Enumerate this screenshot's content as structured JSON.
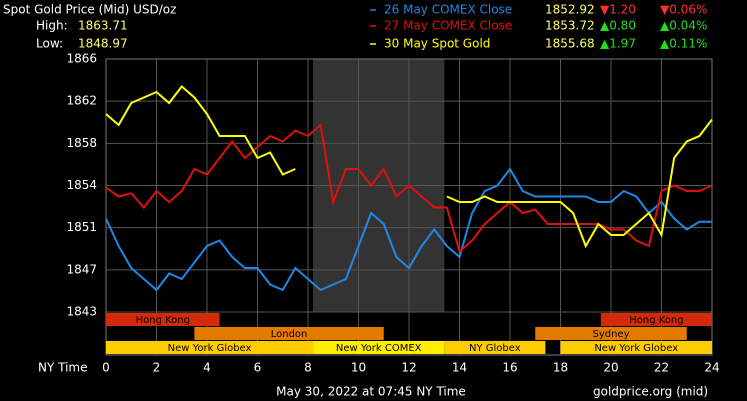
{
  "chart_data": {
    "type": "line",
    "title": "Spot Gold Price (Mid) USD/oz",
    "high_label": "High:",
    "high": 1863.71,
    "low_label": "Low:",
    "low": 1848.97,
    "x_label": "NY Time",
    "footer": "May 30, 2022 at 07:45 NY Time",
    "source": "goldprice.org (mid)",
    "x": [
      0,
      0.5,
      1,
      1.5,
      2,
      2.5,
      3,
      3.5,
      4,
      4.5,
      5,
      5.5,
      6,
      6.5,
      7,
      7.5,
      8,
      8.5,
      9,
      9.5,
      10,
      10.5,
      11,
      11.5,
      12,
      12.5,
      13,
      13.5,
      14,
      14.5,
      15,
      15.5,
      16,
      16.5,
      17,
      17.5,
      18,
      18.5,
      19,
      19.5,
      20,
      20.5,
      21,
      21.5,
      22,
      22.5,
      23,
      23.5,
      24
    ],
    "xlim": [
      0,
      24
    ],
    "xticks": [
      0,
      2,
      4,
      6,
      8,
      10,
      12,
      14,
      16,
      18,
      20,
      22,
      24
    ],
    "ylim": [
      1843,
      1866
    ],
    "yticks": [
      1843,
      {
        "value": 1846.83,
        "label": "1847"
      },
      {
        "value": 1850.67,
        "label": "1851"
      },
      {
        "value": 1854.5,
        "label": "1854"
      },
      {
        "value": 1858.33,
        "label": "1858"
      },
      {
        "value": 1862.17,
        "label": "1862"
      },
      1866
    ],
    "grid": true,
    "shaded": [
      8.2,
      13.4
    ],
    "series": [
      {
        "name": "26 May COMEX Close",
        "color": "#1e88e5",
        "close": 1852.92,
        "change": {
          "value": -1.2,
          "label": "▼1.20"
        },
        "change_pct": {
          "value": -0.06,
          "label": "▼0.06%"
        },
        "values": [
          1851.5,
          1849,
          1847,
          1846,
          1845,
          1846.5,
          1846,
          1847.5,
          1849,
          1849.5,
          1848,
          1847,
          1847,
          1845.5,
          1845,
          1847,
          1846,
          1845,
          1845.5,
          1846,
          1849,
          1852,
          1851,
          1848,
          1847,
          1849,
          1850.5,
          1849,
          1848,
          1852,
          1854,
          1854.5,
          1856,
          1854,
          1853.5,
          1853.5,
          1853.5,
          1853.5,
          1853.5,
          1853,
          1853,
          1854,
          1853.5,
          1852,
          1853,
          1851.5,
          1850.5,
          1851.2,
          1851.2
        ]
      },
      {
        "name": "27 May COMEX Close",
        "color": "#e01010",
        "close": 1853.72,
        "change": {
          "value": 0.8,
          "label": "▲0.80"
        },
        "change_pct": {
          "value": 0.04,
          "label": "▲0.04%"
        },
        "values": [
          1854.3,
          1853.5,
          1853.8,
          1852.5,
          1854,
          1853,
          1854,
          1856,
          1855.5,
          1857,
          1858.5,
          1857,
          1858,
          1859,
          1858.5,
          1859.5,
          1859,
          1860,
          1853,
          1856,
          1856,
          1854.5,
          1856,
          1853.5,
          1854.5,
          1853.5,
          1852.5,
          1852.5,
          1848.5,
          1849.5,
          1851,
          1852,
          1853,
          1852,
          1852.3,
          1851,
          1851,
          1851,
          1851,
          1851,
          1850.5,
          1850.5,
          1849.5,
          1849,
          1854,
          1854.5,
          1854,
          1854,
          1854.5
        ]
      },
      {
        "name": "30 May Spot Gold",
        "color": "#ffff00",
        "close": 1855.68,
        "change": {
          "value": 1.97,
          "label": "▲1.97"
        },
        "change_pct": {
          "value": 0.11,
          "label": "▲0.11%"
        },
        "values": [
          1861,
          1860,
          1862,
          1862.5,
          1863,
          1862,
          1863.5,
          1862.5,
          1861,
          1859,
          1859,
          1859,
          1857,
          1857.5,
          1855.5,
          1856,
          null,
          null,
          null,
          null,
          null,
          null,
          null,
          null,
          null,
          null,
          null,
          1853.5,
          1853,
          1853,
          1853.5,
          1853,
          1853,
          1853,
          1853,
          1853,
          1853,
          1852,
          1849,
          1851,
          1850,
          1850,
          1851,
          1852,
          1850,
          1857,
          1858.5,
          1859,
          1860.5
        ]
      }
    ],
    "session_rows": [
      [
        {
          "name": "Hong Kong",
          "start": 0,
          "end": 4.5,
          "color": "#d42a0a"
        },
        {
          "name": "Hong Kong",
          "start": 19.6,
          "end": 24,
          "color": "#d42a0a"
        }
      ],
      [
        {
          "name": "London",
          "start": 3.5,
          "end": 11,
          "color": "#e37b00"
        },
        {
          "name": "Sydney",
          "start": 17,
          "end": 23,
          "color": "#e37b00"
        }
      ],
      [
        {
          "name": "New York Globex",
          "start": 0,
          "end": 8.2,
          "color": "#ffcc00"
        },
        {
          "name": "New York COMEX",
          "start": 8.2,
          "end": 13.4,
          "color": "#ffee00"
        },
        {
          "name": "NY Globex",
          "start": 13.4,
          "end": 17.4,
          "color": "#ffcc00"
        },
        {
          "name": "New York Globex",
          "start": 18,
          "end": 24,
          "color": "#ffcc00"
        }
      ]
    ]
  }
}
